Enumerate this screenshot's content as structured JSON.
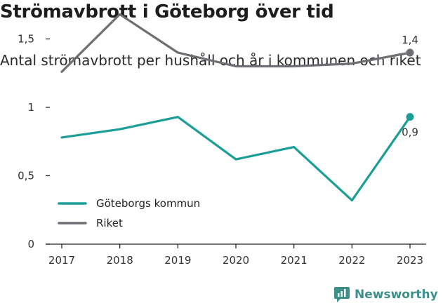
{
  "title": "Strömavbrott i Göteborg över tid",
  "subtitle": "Antal strömavbrott per hushåll och år i kommunen och riket",
  "brand": "Newsworthy",
  "colors": {
    "goteborg": "#1b9e96",
    "riket": "#6e6e73",
    "brand": "#3d8f8c"
  },
  "chart_data": {
    "type": "line",
    "title": "Strömavbrott i Göteborg över tid",
    "subtitle": "Antal strömavbrott per hushåll och år i kommunen och riket",
    "x": [
      "2017",
      "2018",
      "2019",
      "2020",
      "2021",
      "2022",
      "2023"
    ],
    "y_ticks": [
      "0",
      "0,5",
      "1",
      "1,5"
    ],
    "ylim": [
      0,
      1.7
    ],
    "grid": false,
    "legend_position": "left",
    "series": [
      {
        "name": "Göteborgs kommun",
        "color": "#1b9e96",
        "values": [
          0.78,
          0.84,
          0.93,
          0.62,
          0.71,
          0.32,
          0.93
        ],
        "end_label": "0,9"
      },
      {
        "name": "Riket",
        "color": "#6e6e73",
        "values": [
          1.26,
          1.68,
          1.4,
          1.3,
          1.3,
          1.32,
          1.4
        ],
        "end_label": "1,4"
      }
    ]
  }
}
